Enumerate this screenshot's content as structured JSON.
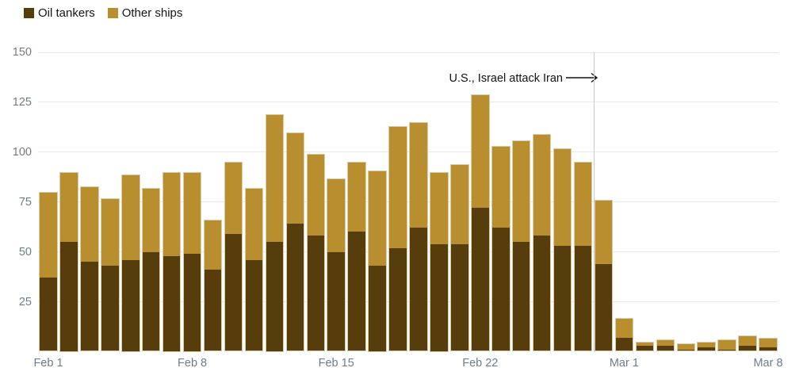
{
  "legend": {
    "items": [
      {
        "label": "Oil tankers",
        "color": "#573d0c"
      },
      {
        "label": "Other ships",
        "color": "#b88e2e"
      }
    ]
  },
  "chart_data": {
    "type": "bar",
    "stacked": true,
    "title": "",
    "xlabel": "",
    "ylabel": "",
    "ylim": [
      0,
      150
    ],
    "yticks": [
      25,
      50,
      75,
      100,
      125,
      150
    ],
    "grid": "horizontal",
    "legend_position": "top-left",
    "categories": [
      "Feb 1",
      "Feb 2",
      "Feb 3",
      "Feb 4",
      "Feb 5",
      "Feb 6",
      "Feb 7",
      "Feb 8",
      "Feb 9",
      "Feb 10",
      "Feb 11",
      "Feb 12",
      "Feb 13",
      "Feb 14",
      "Feb 15",
      "Feb 16",
      "Feb 17",
      "Feb 18",
      "Feb 19",
      "Feb 20",
      "Feb 21",
      "Feb 22",
      "Feb 23",
      "Feb 24",
      "Feb 25",
      "Feb 26",
      "Feb 27",
      "Feb 28",
      "Mar 1",
      "Mar 2",
      "Mar 3",
      "Mar 4",
      "Mar 5",
      "Mar 6",
      "Mar 7",
      "Mar 8"
    ],
    "series": [
      {
        "name": "Oil tankers",
        "color": "#573d0c",
        "values": [
          37,
          55,
          45,
          43,
          46,
          50,
          48,
          49,
          41,
          59,
          46,
          55,
          64,
          58,
          50,
          60,
          43,
          52,
          62,
          54,
          54,
          72,
          62,
          55,
          58,
          53,
          53,
          44,
          7,
          3,
          3,
          1,
          2,
          1,
          3,
          2
        ]
      },
      {
        "name": "Other ships",
        "color": "#b88e2e",
        "values": [
          43,
          35,
          38,
          34,
          43,
          32,
          42,
          41,
          25,
          36,
          36,
          64,
          46,
          41,
          37,
          35,
          48,
          61,
          53,
          36,
          40,
          57,
          41,
          51,
          51,
          49,
          42,
          32,
          10,
          2,
          3,
          3,
          3,
          5,
          5,
          5
        ]
      }
    ],
    "x_tick_labels": [
      "Feb 1",
      "Feb 8",
      "Feb 15",
      "Feb 22",
      "Mar 1",
      "Mar 8"
    ],
    "x_tick_indices": [
      0,
      7,
      14,
      21,
      28,
      35
    ],
    "annotation": {
      "text": "U.S., Israel attack Iran",
      "line_between": [
        "Feb 27",
        "Feb 28"
      ],
      "line_after_index": 27
    }
  }
}
